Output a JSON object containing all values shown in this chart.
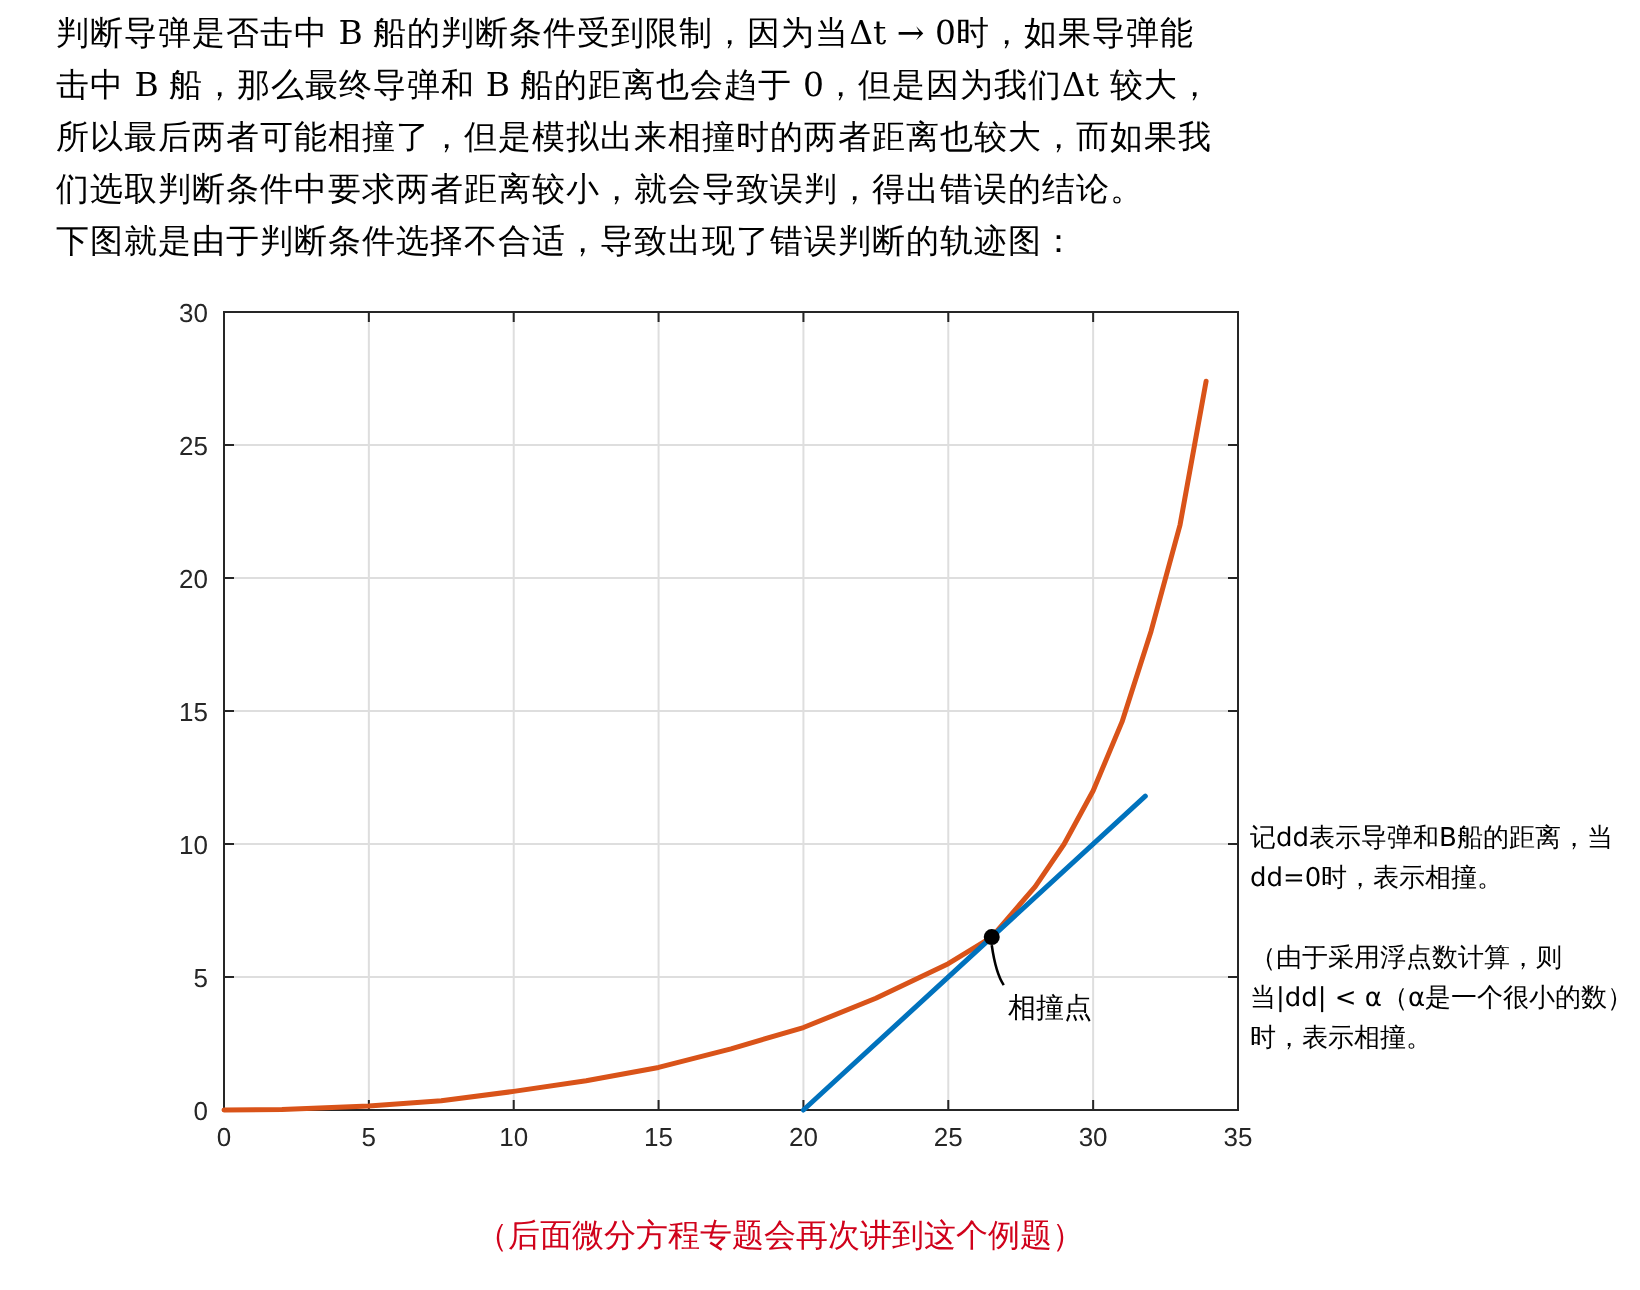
{
  "chart_data": {
    "type": "line",
    "title": "判断导弹是否击中 B 船的判断条件受到限制，因为当Δt → 0时，如果导弹能击中 B 船，那么最终导弹和 B 船的距离也会趋于 0，但是因为我们Δt 较大，所以最后两者可能相撞了，但是模拟出来相撞时的两者距离也较大，而如果我们选取判断条件中要求两者距离较小，就会导致误判，得出错误的结论。",
    "subtitle": "下图就是由于判断条件选择不合适，导致出现了错误判断的轨迹图：",
    "series": [
      {
        "color": "#d95319",
        "x": [
          0,
          2,
          5,
          7.5,
          10,
          12.5,
          15,
          17.5,
          20,
          22.5,
          25,
          26.5,
          28,
          29,
          30,
          31,
          32,
          33,
          33.5,
          33.9
        ],
        "values": [
          0,
          0.02,
          0.15,
          0.35,
          0.7,
          1.1,
          1.6,
          2.3,
          3.1,
          4.2,
          5.5,
          6.5,
          8.4,
          10,
          12,
          14.6,
          18,
          22,
          25,
          27.4
        ]
      },
      {
        "color": "#0072bd",
        "x": [
          20,
          31.8
        ],
        "values": [
          0,
          11.8
        ]
      }
    ],
    "xlim": [
      0,
      35
    ],
    "ylim": [
      0,
      30
    ],
    "xticks": [
      0,
      5,
      10,
      15,
      20,
      25,
      30,
      35
    ],
    "yticks": [
      0,
      5,
      10,
      15,
      20,
      25,
      30
    ],
    "grid": true,
    "annotations": [
      {
        "text": "相撞点",
        "x": 26.5,
        "y": 6.5
      },
      "（由于采用浮点数计算，则当|dd| < α（α是一个很小的数）时，表示相撞。",
      "记dd表示导弹和B船的距离，当dd=0时，表示相撞。",
      "（后面微分方程专题会再次讲到这个例题）"
    ]
  }
}
